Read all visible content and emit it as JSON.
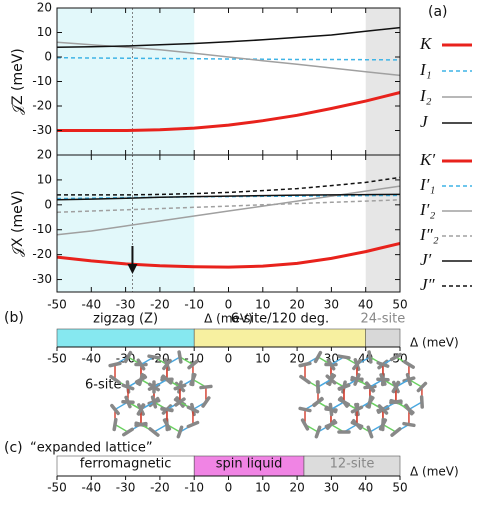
{
  "chart_data": [
    {
      "type": "line",
      "panel": "(a)",
      "ylabel": "𝒥Z (meV)",
      "x": [
        -50,
        -40,
        -30,
        -20,
        -10,
        0,
        10,
        20,
        30,
        40,
        50
      ],
      "xlim": [
        -50,
        50
      ],
      "xticks": [
        -50,
        -40,
        -30,
        -20,
        -10,
        0,
        10,
        20,
        30,
        40,
        50
      ],
      "ylim": [
        -40,
        20
      ],
      "yticks": [
        -30,
        -20,
        -10,
        0,
        10,
        20
      ],
      "shading": [
        {
          "range": [
            -50,
            -10
          ],
          "color": "#e2f8fa"
        },
        {
          "range": [
            40,
            50
          ],
          "color": "#e6e6e6"
        }
      ],
      "vline": -28,
      "series": [
        {
          "name": "K",
          "color": "#e8221c",
          "dash": false,
          "width": 3,
          "values": [
            -30,
            -30,
            -30,
            -29.7,
            -29,
            -27.8,
            -26,
            -23.8,
            -21,
            -18,
            -14.5
          ]
        },
        {
          "name": "I₁",
          "color": "#3fb4e6",
          "dash": true,
          "width": 1.5,
          "values": [
            -0.3,
            -0.4,
            -0.5,
            -0.6,
            -0.7,
            -0.8,
            -0.9,
            -1,
            -1,
            -1.1,
            -1.2
          ]
        },
        {
          "name": "I₂",
          "color": "#a0a0a0",
          "dash": false,
          "width": 1.5,
          "values": [
            6,
            5,
            4,
            3,
            1.5,
            0,
            -1.5,
            -3,
            -4.5,
            -6,
            -7.5
          ]
        },
        {
          "name": "J",
          "color": "#111111",
          "dash": false,
          "width": 1.5,
          "values": [
            4,
            4.2,
            4.5,
            5,
            5.5,
            6.2,
            7,
            8,
            9,
            10.5,
            12
          ]
        }
      ]
    },
    {
      "type": "line",
      "ylabel": "𝒥X (meV)",
      "xlabel": "Δ (meV)",
      "x": [
        -50,
        -40,
        -30,
        -20,
        -10,
        0,
        10,
        20,
        30,
        40,
        50
      ],
      "xlim": [
        -50,
        50
      ],
      "xticks": [
        -50,
        -40,
        -30,
        -20,
        -10,
        0,
        10,
        20,
        30,
        40,
        50
      ],
      "ylim": [
        -35,
        20
      ],
      "yticks": [
        -30,
        -20,
        -10,
        0,
        10,
        20
      ],
      "shading": [
        {
          "range": [
            -50,
            -10
          ],
          "color": "#e2f8fa"
        },
        {
          "range": [
            40,
            50
          ],
          "color": "#e6e6e6"
        }
      ],
      "vline": -28,
      "series": [
        {
          "name": "K′",
          "color": "#e8221c",
          "dash": false,
          "width": 3,
          "values": [
            -21,
            -22.5,
            -23.7,
            -24.5,
            -24.9,
            -25,
            -24.6,
            -23.5,
            -21.5,
            -18.8,
            -15.5
          ]
        },
        {
          "name": "I′₁",
          "color": "#3fb4e6",
          "dash": true,
          "width": 1.5,
          "values": [
            2.5,
            2.7,
            2.9,
            3,
            3.2,
            3.3,
            3.4,
            3.5,
            3.6,
            3.7,
            3.8
          ]
        },
        {
          "name": "I′₂",
          "color": "#a0a0a0",
          "dash": false,
          "width": 1.5,
          "values": [
            -12,
            -10.5,
            -8.5,
            -6.5,
            -4.5,
            -2.5,
            -0.5,
            1.5,
            3.5,
            5.5,
            7.5
          ]
        },
        {
          "name": "I″₂",
          "color": "#a0a0a0",
          "dash": true,
          "width": 1.5,
          "values": [
            -3,
            -2.5,
            -2,
            -1.5,
            -1,
            -0.5,
            0,
            0.5,
            1,
            1.5,
            2
          ]
        },
        {
          "name": "J′",
          "color": "#111111",
          "dash": false,
          "width": 1.5,
          "values": [
            2,
            2.3,
            2.6,
            3,
            3.3,
            3.5,
            3.7,
            3.9,
            4,
            4.1,
            4.2
          ]
        },
        {
          "name": "J″",
          "color": "#111111",
          "dash": true,
          "width": 1.5,
          "values": [
            4,
            4,
            4,
            4.2,
            4.5,
            5,
            5.7,
            6.5,
            7.7,
            9,
            11
          ]
        }
      ]
    },
    {
      "type": "phase",
      "panel": "(b)",
      "annotation": "6-site",
      "xlabel": "Δ (meV)",
      "xlim": [
        -50,
        50
      ],
      "xticks": [
        -50,
        -40,
        -30,
        -20,
        -10,
        0,
        10,
        20,
        30,
        40,
        50
      ],
      "regions": [
        {
          "name": "zigzag (Z)",
          "range": [
            -50,
            -10
          ],
          "color": "#86e8f0",
          "label_color": "#111111"
        },
        {
          "name": "6-site/120 deg.",
          "range": [
            -10,
            40
          ],
          "color": "#f7f0a0",
          "label_color": "#111111"
        },
        {
          "name": "24-site",
          "range": [
            40,
            50
          ],
          "color": "#d8d8d8",
          "label_color": "#888888"
        }
      ]
    },
    {
      "type": "phase",
      "panel": "(c)",
      "annotation": "“expanded lattice”",
      "xlabel": "Δ (meV)",
      "xlim": [
        -50,
        50
      ],
      "xticks": [
        -50,
        -40,
        -30,
        -20,
        -10,
        0,
        10,
        20,
        30,
        40,
        50
      ],
      "regions": [
        {
          "name": "ferromagnetic",
          "range": [
            -50,
            -10
          ],
          "color": "#ffffff",
          "label_color": "#111111"
        },
        {
          "name": "spin liquid",
          "range": [
            -10,
            22
          ],
          "color": "#f084e4",
          "label_color": "#111111"
        },
        {
          "name": "12-site",
          "range": [
            22,
            50
          ],
          "color": "#dcdcdc",
          "label_color": "#888888"
        }
      ]
    }
  ]
}
